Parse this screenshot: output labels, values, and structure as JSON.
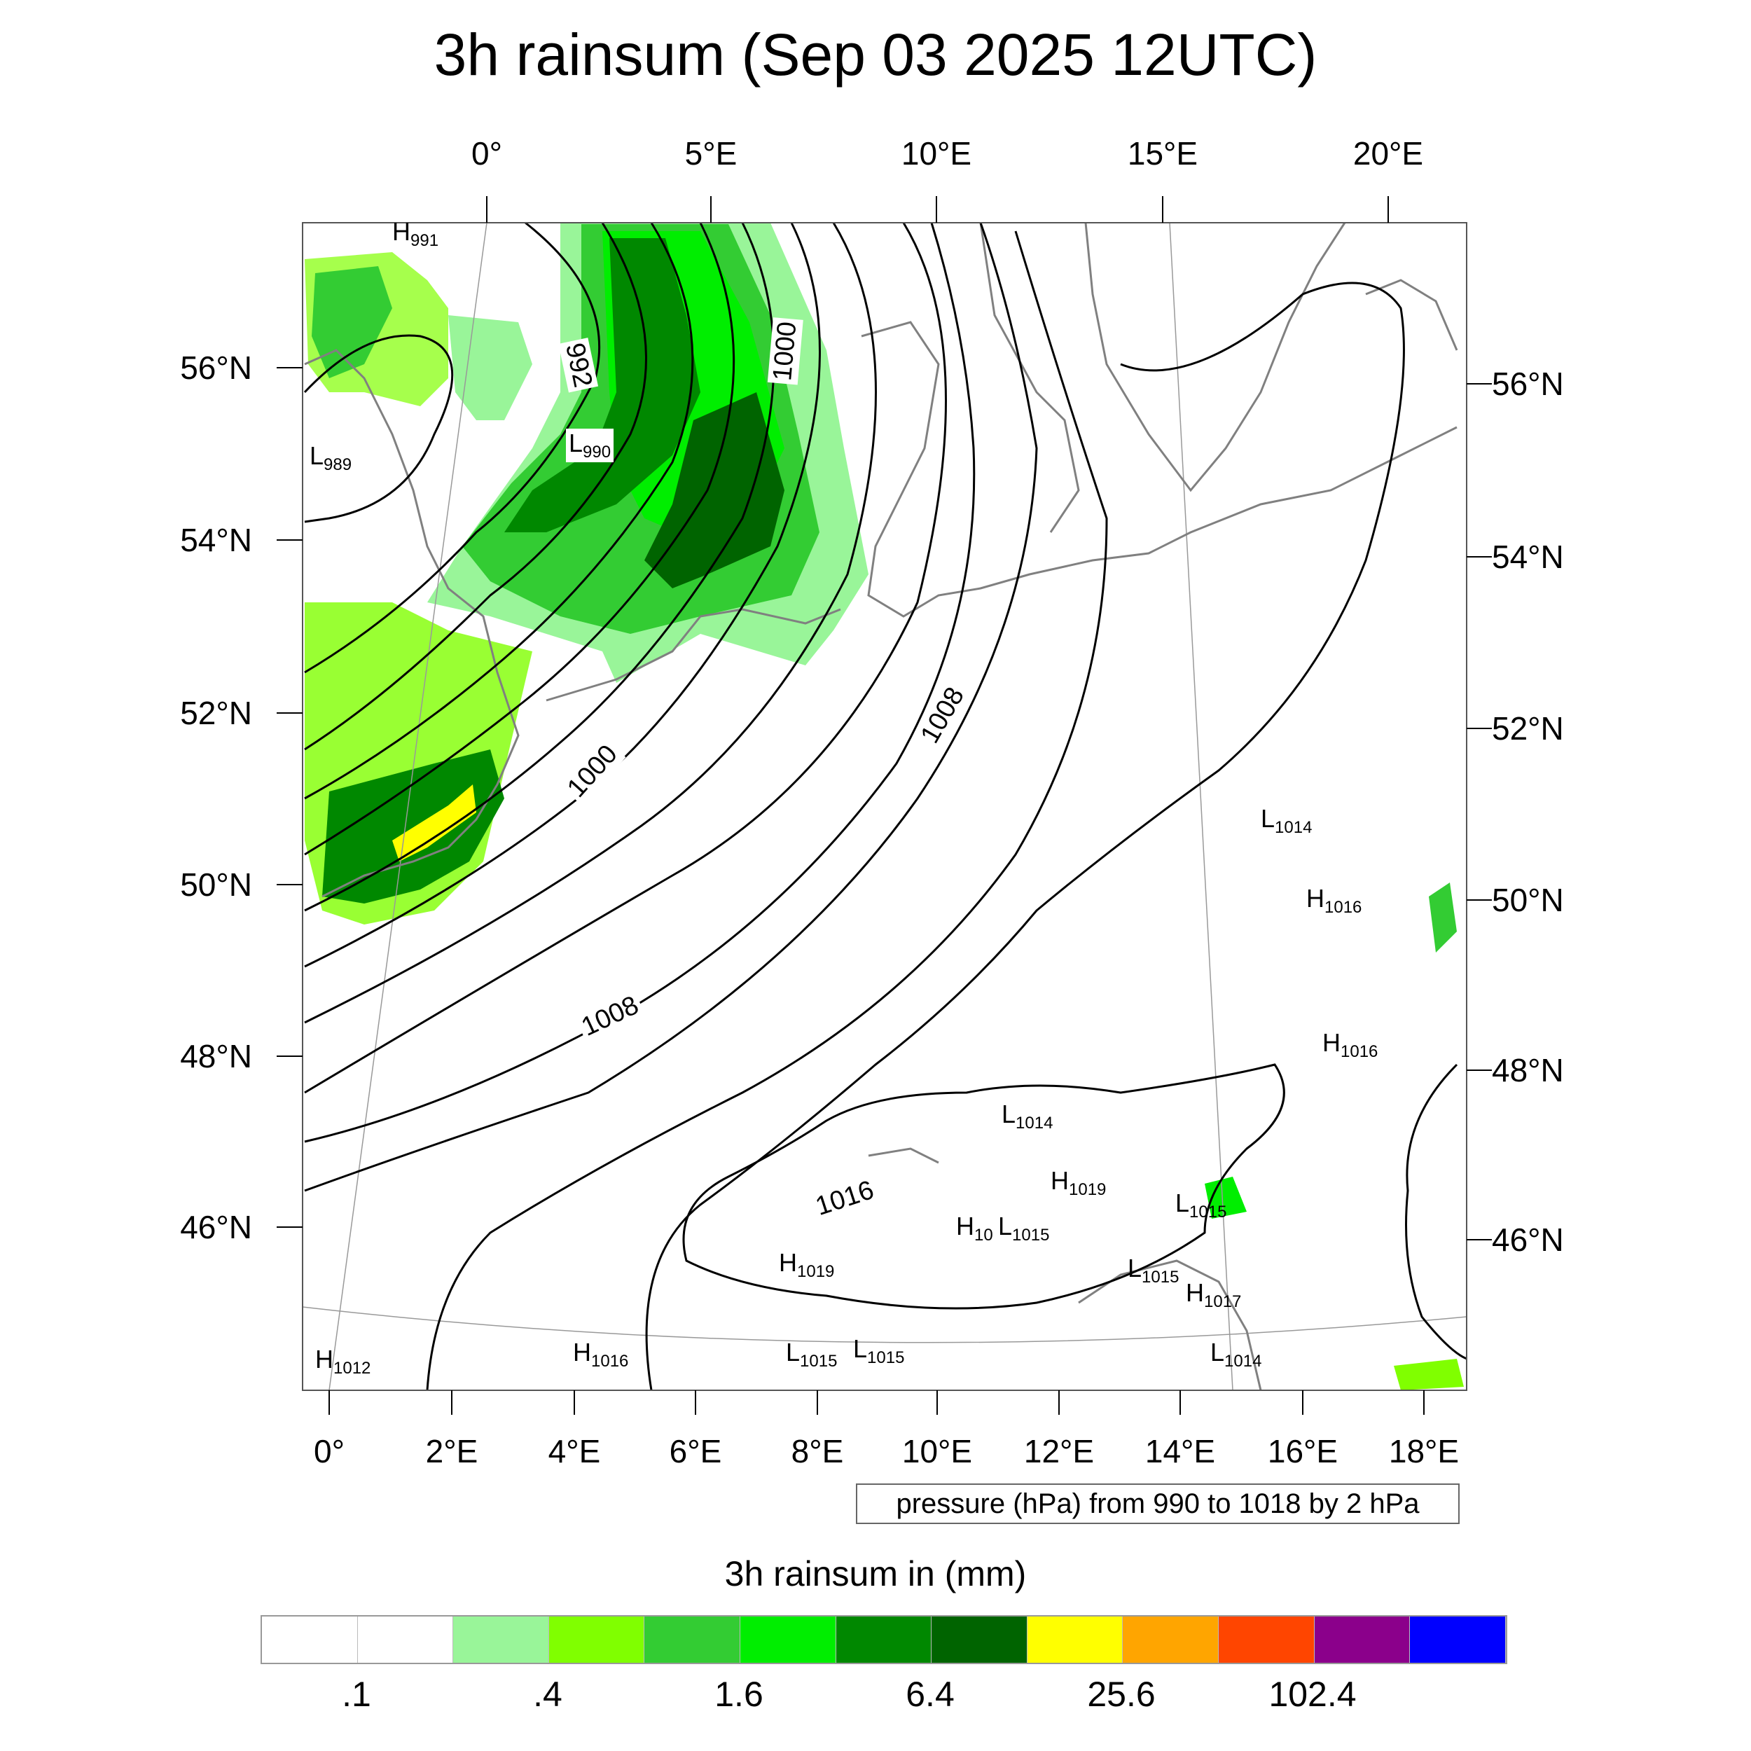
{
  "title": "3h rainsum (Sep 03 2025 12UTC)",
  "top_lon_ticks": [
    "0°",
    "5°E",
    "10°E",
    "15°E",
    "20°E"
  ],
  "bottom_lon_ticks": [
    "0°",
    "2°E",
    "4°E",
    "6°E",
    "8°E",
    "10°E",
    "12°E",
    "14°E",
    "16°E",
    "18°E"
  ],
  "left_lat_ticks": [
    "56°N",
    "54°N",
    "52°N",
    "50°N",
    "48°N",
    "46°N"
  ],
  "right_lat_ticks": [
    "56°N",
    "54°N",
    "52°N",
    "50°N",
    "48°N",
    "46°N"
  ],
  "contour_labels": [
    "992",
    "1000",
    "1000",
    "1008",
    "1008",
    "1016"
  ],
  "pressure_centers": [
    {
      "type": "H",
      "value": "991"
    },
    {
      "type": "L",
      "value": "989"
    },
    {
      "type": "L",
      "value": "990"
    },
    {
      "type": "L",
      "value": "1014"
    },
    {
      "type": "H",
      "value": "1016"
    },
    {
      "type": "H",
      "value": "1016"
    },
    {
      "type": "L",
      "value": "1014"
    },
    {
      "type": "H",
      "value": "1019"
    },
    {
      "type": "L",
      "value": "1015"
    },
    {
      "type": "H",
      "value": "10"
    },
    {
      "type": "L",
      "value": "1015"
    },
    {
      "type": "H",
      "value": "1019"
    },
    {
      "type": "L",
      "value": "1015"
    },
    {
      "type": "H",
      "value": "1017"
    },
    {
      "type": "H",
      "value": "1012"
    },
    {
      "type": "H",
      "value": "1016"
    },
    {
      "type": "L",
      "value": "1015"
    },
    {
      "type": "L",
      "value": "1015"
    },
    {
      "type": "L",
      "value": "1014"
    }
  ],
  "pressure_note": "pressure (hPa) from 990 to 1018 by 2 hPa",
  "colorbar": {
    "title": "3h rainsum in (mm)",
    "colors": [
      "#ffffff",
      "#ffffff",
      "#99f599",
      "#80ff00",
      "#33cc33",
      "#00ee00",
      "#008800",
      "#006400",
      "#ffff00",
      "#ffa500",
      "#ff4500",
      "#8b008b",
      "#0000ff"
    ],
    "labels": [
      ".1",
      ".4",
      "1.6",
      "6.4",
      "25.6",
      "102.4"
    ]
  }
}
